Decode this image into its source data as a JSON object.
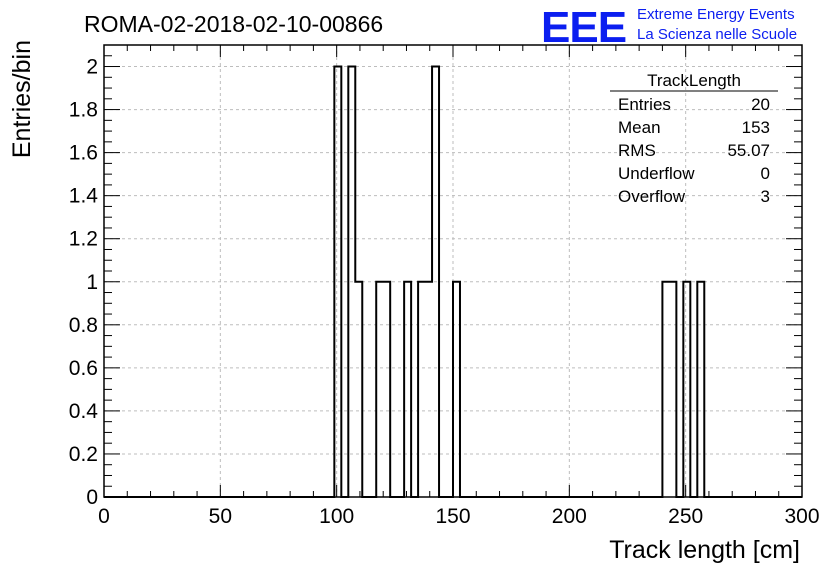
{
  "chart_data": {
    "type": "bar",
    "title": "ROMA-02-2018-02-10-00866",
    "xlabel": "Track length [cm]",
    "ylabel": "Entries/bin",
    "xlim": [
      0,
      300
    ],
    "ylim": [
      0,
      2.1
    ],
    "bin_width": 3,
    "x_ticks": [
      0,
      50,
      100,
      150,
      200,
      250,
      300
    ],
    "y_ticks": [
      0,
      0.2,
      0.4,
      0.6,
      0.8,
      1,
      1.2,
      1.4,
      1.6,
      1.8,
      2
    ],
    "grid": true,
    "bins": [
      {
        "x": 99,
        "value": 2
      },
      {
        "x": 105,
        "value": 2
      },
      {
        "x": 108,
        "value": 1
      },
      {
        "x": 117,
        "value": 1
      },
      {
        "x": 120,
        "value": 1
      },
      {
        "x": 129,
        "value": 1
      },
      {
        "x": 135,
        "value": 1
      },
      {
        "x": 138,
        "value": 1
      },
      {
        "x": 141,
        "value": 2
      },
      {
        "x": 150,
        "value": 1
      },
      {
        "x": 240,
        "value": 1
      },
      {
        "x": 243,
        "value": 1
      },
      {
        "x": 249,
        "value": 1
      },
      {
        "x": 255,
        "value": 1
      }
    ],
    "stats_box": {
      "title": "TrackLength",
      "placement": "top-right",
      "rows": [
        {
          "label": "Entries",
          "value": "20"
        },
        {
          "label": "Mean",
          "value": "153"
        },
        {
          "label": "RMS",
          "value": "55.07"
        },
        {
          "label": "Underflow",
          "value": "0"
        },
        {
          "label": "Overflow",
          "value": "3"
        }
      ]
    }
  },
  "logo": {
    "mark": "EEE",
    "line1": "Extreme Energy Events",
    "line2": "La Scienza nelle Scuole",
    "color": "#0b1ef0"
  }
}
